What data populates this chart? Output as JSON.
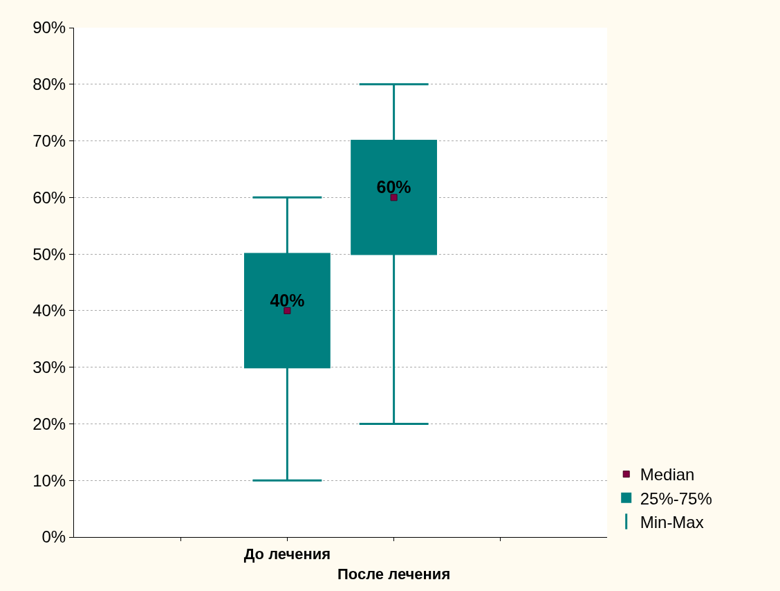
{
  "chart_data": {
    "type": "box",
    "categories": [
      "До лечения",
      "После лечения"
    ],
    "series": [
      {
        "name": "25%-75%",
        "color": "#008080",
        "boxes": [
          {
            "low": 10,
            "q1": 30,
            "median": 40,
            "q3": 50,
            "high": 60
          },
          {
            "low": 20,
            "q1": 50,
            "median": 60,
            "q3": 70,
            "high": 80
          }
        ]
      },
      {
        "name": "Median",
        "type": "scatter",
        "color": "#800040",
        "marker": "square",
        "values": [
          40,
          60
        ],
        "value_labels": [
          "40%",
          "60%"
        ]
      }
    ],
    "annotations": [
      "Min-Max"
    ],
    "ylim": [
      0,
      90
    ],
    "yticks": [
      {
        "value": 0,
        "label": "0%"
      },
      {
        "value": 10,
        "label": "10%"
      },
      {
        "value": 20,
        "label": "20%"
      },
      {
        "value": 30,
        "label": "30%"
      },
      {
        "value": 40,
        "label": "40%"
      },
      {
        "value": 50,
        "label": "50%"
      },
      {
        "value": 60,
        "label": "60%"
      },
      {
        "value": 70,
        "label": "70%"
      },
      {
        "value": 80,
        "label": "80%"
      },
      {
        "value": 90,
        "label": "90%"
      }
    ],
    "grid": "y",
    "legend": "bottom right"
  }
}
